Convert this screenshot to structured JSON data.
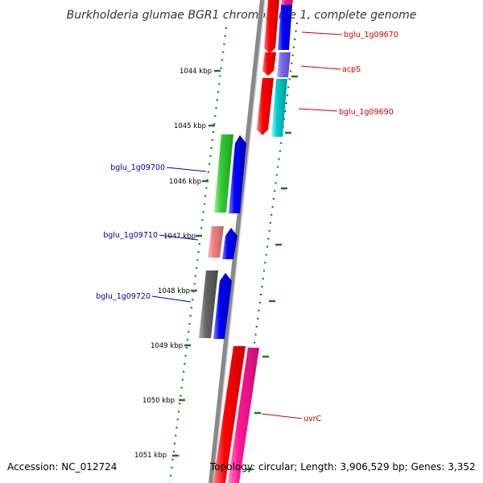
{
  "title": "Burkholderia glumae BGR1 chromosome 1, complete genome",
  "footer": {
    "accession": "Accession: NC_012724",
    "topology": "Topology: circular; Length: 3,906,529 bp; Genes: 3,352"
  },
  "scale_labels": [
    "1044 kbp",
    "1045 kbp",
    "1046 kbp",
    "1047 kbp",
    "1048 kbp",
    "1049 kbp",
    "1050 kbp",
    "1051 kbp"
  ],
  "genes": [
    {
      "label": "bglu_1g09670",
      "color": "#cc0000"
    },
    {
      "label": "acpS",
      "color": "#cc0000"
    },
    {
      "label": "bglu_1g09690",
      "color": "#cc0000"
    },
    {
      "label": "bglu_1g09700",
      "color": "#0000aa"
    },
    {
      "label": "bglu_1g09710",
      "color": "#0000aa"
    },
    {
      "label": "bglu_1g09720",
      "color": "#0000aa"
    },
    {
      "label": "uvrC",
      "color": "#cc0000"
    }
  ],
  "colors": {
    "tick": "#1a7a1a",
    "backbone": "#888888",
    "red": "#ff0000",
    "blue": "#0000ff",
    "magenta": "#ff1493",
    "violet": "#7b68ee",
    "cyan": "#00cccc",
    "green": "#33cc33",
    "pink": "#f08080",
    "gray": "#666666"
  }
}
